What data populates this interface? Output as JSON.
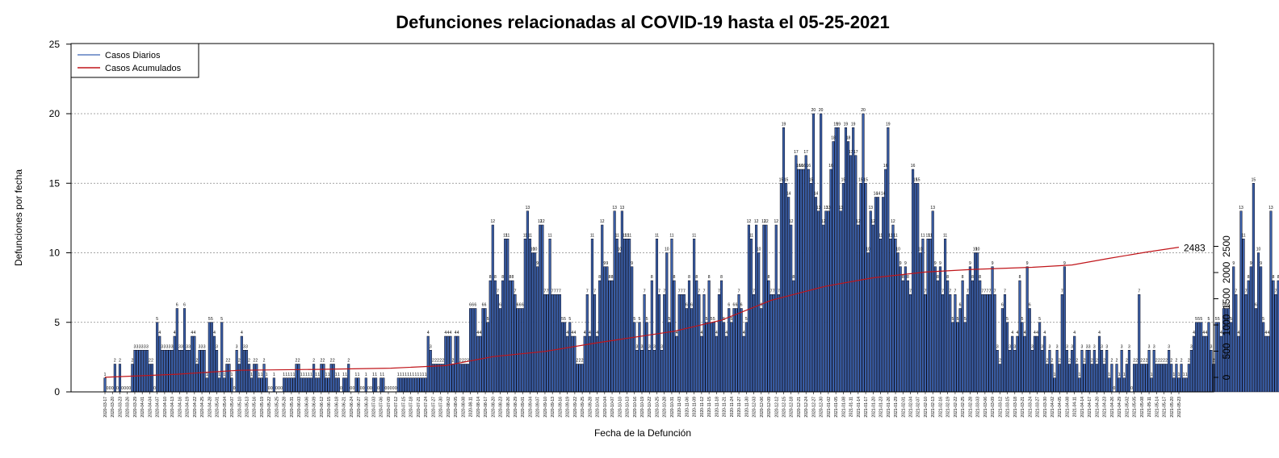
{
  "colors": {
    "bar_fill": "#3a5fa8",
    "bar_stroke": "#0a0a1a",
    "cumulative_line": "#c0151a",
    "legend_daily": "#5b7fc0",
    "grid": "#888888"
  },
  "chart_data": {
    "type": "bar",
    "title": "Defunciones relacionadas al COVID-19 hasta el 05-25-2021",
    "xlabel": "Fecha de la Defunción",
    "ylabel": "Defunciones por fecha",
    "ylim": [
      0,
      25
    ],
    "yticks": [
      0,
      5,
      10,
      15,
      20,
      25
    ],
    "y2lim": [
      -100,
      2600
    ],
    "y2ticks": [
      0,
      500,
      1000,
      1500,
      2000,
      2500
    ],
    "grid": "horizontal dotted",
    "legend_position": "top-left",
    "x_start": "2020-03-17",
    "x_end": "2021-05-23",
    "x_label_step_days": 3,
    "series": [
      {
        "name": "Casos Diarios",
        "type": "bar"
      },
      {
        "name": "Casos Acumulados",
        "type": "line",
        "axis": "right"
      }
    ],
    "daily_values": [
      1,
      0,
      0,
      0,
      2,
      0,
      2,
      0,
      0,
      0,
      0,
      2,
      3,
      3,
      3,
      3,
      3,
      3,
      2,
      2,
      0,
      5,
      4,
      3,
      3,
      3,
      3,
      3,
      4,
      6,
      3,
      3,
      6,
      3,
      3,
      4,
      4,
      2,
      3,
      3,
      3,
      1,
      5,
      5,
      4,
      3,
      1,
      5,
      1,
      2,
      2,
      1,
      0,
      3,
      2,
      4,
      3,
      3,
      2,
      1,
      2,
      2,
      1,
      1,
      2,
      1,
      0,
      0,
      1,
      0,
      0,
      0,
      1,
      1,
      1,
      1,
      1,
      2,
      2,
      1,
      1,
      1,
      1,
      1,
      2,
      1,
      1,
      2,
      2,
      1,
      1,
      2,
      2,
      1,
      1,
      0,
      1,
      1,
      2,
      0,
      0,
      1,
      1,
      0,
      0,
      1,
      0,
      0,
      1,
      1,
      0,
      1,
      1,
      0,
      0,
      0,
      0,
      0,
      1,
      1,
      1,
      1,
      1,
      1,
      1,
      1,
      1,
      1,
      1,
      1,
      4,
      3,
      2,
      2,
      2,
      2,
      2,
      4,
      4,
      4,
      2,
      4,
      4,
      2,
      2,
      2,
      2,
      6,
      6,
      6,
      4,
      4,
      6,
      6,
      5,
      8,
      12,
      8,
      7,
      6,
      8,
      11,
      11,
      8,
      8,
      7,
      6,
      6,
      6,
      11,
      13,
      11,
      10,
      10,
      9,
      12,
      12,
      7,
      7,
      11,
      7,
      7,
      7,
      7,
      5,
      5,
      4,
      5,
      4,
      4,
      2,
      2,
      2,
      4,
      7,
      4,
      11,
      7,
      4,
      8,
      12,
      9,
      9,
      8,
      8,
      13,
      11,
      10,
      13,
      11,
      11,
      11,
      9,
      5,
      3,
      5,
      3,
      7,
      5,
      3,
      8,
      3,
      11,
      7,
      3,
      7,
      10,
      5,
      11,
      8,
      4,
      7,
      7,
      7,
      6,
      8,
      6,
      11,
      8,
      7,
      4,
      7,
      5,
      8,
      5,
      5,
      4,
      7,
      8,
      5,
      4,
      6,
      5,
      6,
      6,
      7,
      6,
      4,
      5,
      12,
      11,
      7,
      12,
      10,
      6,
      12,
      12,
      8,
      7,
      7,
      12,
      7,
      15,
      19,
      15,
      14,
      12,
      8,
      17,
      16,
      16,
      16,
      17,
      16,
      15,
      20,
      14,
      13,
      20,
      12,
      13,
      13,
      16,
      18,
      19,
      19,
      13,
      15,
      19,
      18,
      17,
      19,
      17,
      12,
      15,
      20,
      15,
      10,
      13,
      12,
      14,
      14,
      11,
      14,
      16,
      19,
      11,
      12,
      11,
      10,
      9,
      8,
      9,
      8,
      7,
      16,
      15,
      15,
      10,
      11,
      7,
      11,
      11,
      13,
      9,
      8,
      9,
      7,
      11,
      8,
      7,
      5,
      7,
      5,
      6,
      8,
      5,
      7,
      9,
      8,
      10,
      10,
      8,
      7,
      7,
      7,
      7,
      9,
      7,
      3,
      2,
      6,
      7,
      5,
      3,
      4,
      3,
      4,
      8,
      5,
      4,
      9,
      6,
      3,
      4,
      4,
      5,
      3,
      4,
      2,
      3,
      2,
      1,
      3,
      2,
      7,
      9,
      3,
      2,
      3,
      4,
      2,
      1,
      3,
      2,
      3,
      3,
      2,
      3,
      2,
      4,
      3,
      2,
      3,
      1,
      2,
      0,
      2,
      1,
      3,
      1,
      2,
      3,
      0,
      2,
      2,
      7,
      2,
      2,
      2,
      3,
      1,
      3,
      2,
      2,
      2,
      2,
      2,
      3,
      2,
      1,
      2,
      1,
      2,
      1,
      1,
      2,
      3,
      4,
      5,
      5,
      5,
      4,
      4,
      5,
      3,
      2,
      5,
      5,
      4,
      6,
      6,
      6,
      5,
      9,
      7,
      4,
      13,
      11,
      7,
      8,
      9,
      15,
      6,
      10,
      9,
      5,
      4,
      4,
      13,
      8,
      7,
      8,
      6,
      6,
      5,
      6,
      5,
      5,
      14,
      10,
      9,
      9,
      9,
      9,
      9,
      11,
      8,
      9,
      7,
      11,
      8,
      7,
      7,
      5,
      5,
      7,
      7,
      7,
      7,
      7,
      2,
      2,
      4,
      3,
      2,
      0
    ],
    "visible_bar_labels": [
      "1",
      "2",
      "3",
      "4",
      "5",
      "6",
      "7",
      "8",
      "9",
      "10",
      "11",
      "12",
      "13",
      "14",
      "15",
      "16",
      "17",
      "18",
      "19",
      "20"
    ],
    "cumulative_final": 2483,
    "cumulative_points": [
      {
        "x": "2020-03-17",
        "y": 1
      },
      {
        "x": "2020-04-15",
        "y": 60
      },
      {
        "x": "2020-05-10",
        "y": 135
      },
      {
        "x": "2020-06-10",
        "y": 152
      },
      {
        "x": "2020-07-10",
        "y": 175
      },
      {
        "x": "2020-08-01",
        "y": 225
      },
      {
        "x": "2020-08-20",
        "y": 395
      },
      {
        "x": "2020-09-10",
        "y": 495
      },
      {
        "x": "2020-10-01",
        "y": 660
      },
      {
        "x": "2020-11-01",
        "y": 880
      },
      {
        "x": "2020-11-20",
        "y": 1090
      },
      {
        "x": "2020-12-10",
        "y": 1470
      },
      {
        "x": "2021-01-01",
        "y": 1740
      },
      {
        "x": "2021-01-20",
        "y": 1900
      },
      {
        "x": "2021-02-10",
        "y": 2010
      },
      {
        "x": "2021-03-01",
        "y": 2060
      },
      {
        "x": "2021-03-25",
        "y": 2100
      },
      {
        "x": "2021-04-10",
        "y": 2145
      },
      {
        "x": "2021-04-25",
        "y": 2270
      },
      {
        "x": "2021-05-10",
        "y": 2390
      },
      {
        "x": "2021-05-23",
        "y": 2483
      }
    ]
  }
}
